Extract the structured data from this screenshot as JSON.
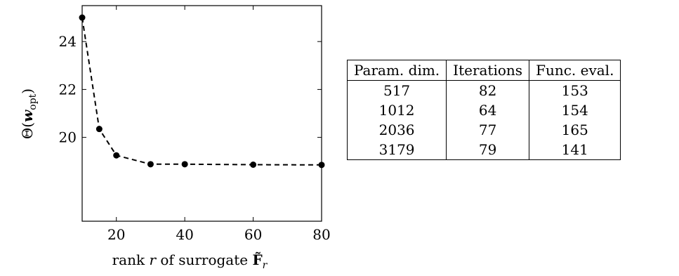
{
  "chart_data": {
    "type": "line",
    "line_style": "dashed",
    "marker": "circle",
    "x": [
      10,
      15,
      20,
      30,
      40,
      60,
      80
    ],
    "y": [
      25.0,
      20.35,
      19.25,
      18.88,
      18.88,
      18.86,
      18.85
    ],
    "xlim": [
      10,
      80
    ],
    "ylim": [
      16.5,
      25.5
    ],
    "xticks": [
      "20",
      "40",
      "60",
      "80"
    ],
    "yticks": [
      "20",
      "22",
      "24"
    ],
    "xlabel": "rank r of surrogate F̃ᵣ",
    "ylabel": "Θ(w_opt)",
    "grid": false
  },
  "axis_text": {
    "xlabel_prefix": "rank ",
    "xlabel_var": "r",
    "xlabel_mid": " of surrogate ",
    "xlabel_symbol": "F̃",
    "xlabel_sub": "r",
    "ylabel_theta": "Θ(",
    "ylabel_var": "w",
    "ylabel_sub": "opt",
    "ylabel_close": ")"
  },
  "table": {
    "headers": [
      "Param. dim.",
      "Iterations",
      "Func. eval."
    ],
    "rows": [
      [
        "517",
        "82",
        "153"
      ],
      [
        "1012",
        "64",
        "154"
      ],
      [
        "2036",
        "77",
        "165"
      ],
      [
        "3179",
        "79",
        "141"
      ]
    ]
  }
}
